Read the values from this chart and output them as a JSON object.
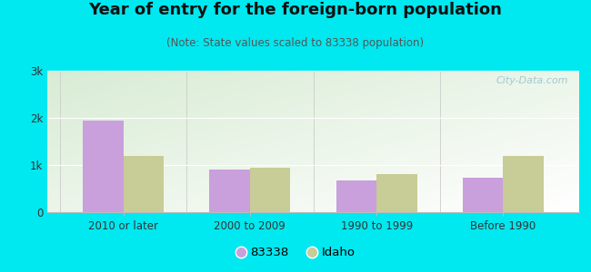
{
  "title": "Year of entry for the foreign-born population",
  "subtitle": "(Note: State values scaled to 83338 population)",
  "categories": [
    "2010 or later",
    "2000 to 2009",
    "1990 to 1999",
    "Before 1990"
  ],
  "series_83338": [
    1950,
    900,
    680,
    730
  ],
  "series_idaho": [
    1200,
    940,
    810,
    1200
  ],
  "color_83338": "#c9a0dc",
  "color_idaho": "#c8cc96",
  "background_outer": "#00e8f0",
  "ylim": [
    0,
    3000
  ],
  "yticks": [
    0,
    1000,
    2000,
    3000
  ],
  "ytick_labels": [
    "0",
    "1k",
    "2k",
    "3k"
  ],
  "bar_width": 0.32,
  "legend_label_83338": "83338",
  "legend_label_idaho": "Idaho",
  "title_fontsize": 13,
  "subtitle_fontsize": 8.5,
  "watermark": "City-Data.com"
}
